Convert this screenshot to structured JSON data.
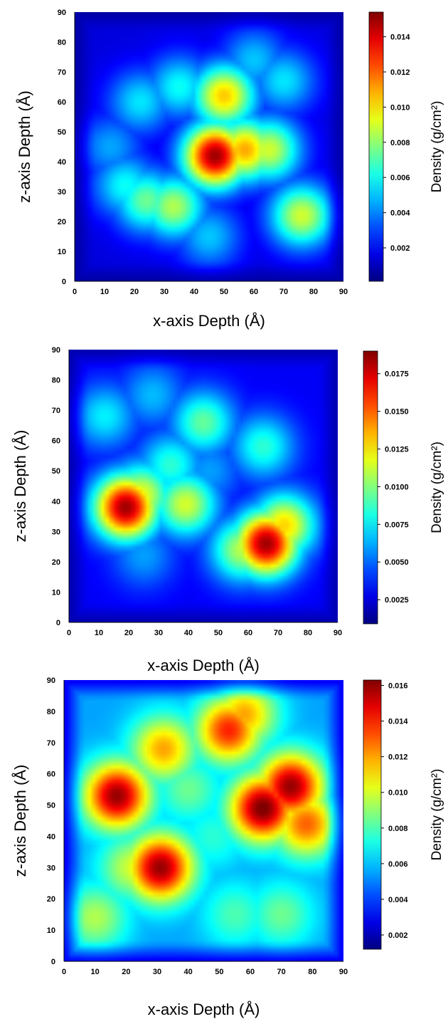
{
  "chart_data": [
    {
      "type": "heatmap",
      "xlabel": "x-axis Depth (Å)",
      "ylabel": "z-axis Depth (Å)",
      "xlim": [
        0,
        90
      ],
      "ylim": [
        0,
        90
      ],
      "x_ticks": [
        "0",
        "10",
        "20",
        "30",
        "40",
        "50",
        "60",
        "70",
        "80",
        "90"
      ],
      "y_ticks": [
        "0",
        "10",
        "20",
        "30",
        "40",
        "50",
        "60",
        "70",
        "80",
        "90"
      ],
      "colorbar": {
        "label": "Density (g/cm²)",
        "range": [
          0.0001,
          0.0154
        ],
        "ticks": [
          "0.002",
          "0.004",
          "0.006",
          "0.008",
          "0.010",
          "0.012",
          "0.014"
        ],
        "tick_values": [
          0.002,
          0.004,
          0.006,
          0.008,
          0.01,
          0.012,
          0.014
        ]
      },
      "colormap": "jet",
      "background_density": 0.0015,
      "hotspots": [
        {
          "x": 47,
          "z": 42,
          "density": 0.015
        },
        {
          "x": 57,
          "z": 44,
          "density": 0.011
        },
        {
          "x": 65,
          "z": 44,
          "density": 0.009
        },
        {
          "x": 50,
          "z": 62,
          "density": 0.0105
        },
        {
          "x": 24,
          "z": 27,
          "density": 0.0075
        },
        {
          "x": 33,
          "z": 25,
          "density": 0.0085
        },
        {
          "x": 17,
          "z": 32,
          "density": 0.006
        },
        {
          "x": 76,
          "z": 22,
          "density": 0.009
        },
        {
          "x": 35,
          "z": 65,
          "density": 0.006
        },
        {
          "x": 22,
          "z": 60,
          "density": 0.0055
        },
        {
          "x": 60,
          "z": 74,
          "density": 0.005
        },
        {
          "x": 70,
          "z": 67,
          "density": 0.0055
        },
        {
          "x": 45,
          "z": 15,
          "density": 0.005
        },
        {
          "x": 12,
          "z": 45,
          "density": 0.0045
        }
      ]
    },
    {
      "type": "heatmap",
      "xlabel": "x-axis Depth (Å)",
      "ylabel": "z-axis Depth (Å)",
      "xlim": [
        0,
        90
      ],
      "ylim": [
        0,
        90
      ],
      "x_ticks": [
        "0",
        "10",
        "20",
        "30",
        "40",
        "50",
        "60",
        "70",
        "80",
        "90"
      ],
      "y_ticks": [
        "0",
        "10",
        "20",
        "30",
        "40",
        "50",
        "60",
        "70",
        "80",
        "90"
      ],
      "colorbar": {
        "label": "Density (g/cm²)",
        "range": [
          0.0009,
          0.019
        ],
        "ticks": [
          "0.0025",
          "0.0050",
          "0.0075",
          "0.0100",
          "0.0125",
          "0.0150",
          "0.0175"
        ],
        "tick_values": [
          0.0025,
          0.005,
          0.0075,
          0.01,
          0.0125,
          0.015,
          0.0175
        ]
      },
      "colormap": "jet",
      "background_density": 0.003,
      "hotspots": [
        {
          "x": 19,
          "z": 38,
          "density": 0.0185
        },
        {
          "x": 24,
          "z": 42,
          "density": 0.012
        },
        {
          "x": 39,
          "z": 39,
          "density": 0.0115
        },
        {
          "x": 66,
          "z": 26,
          "density": 0.0185
        },
        {
          "x": 72,
          "z": 32,
          "density": 0.013
        },
        {
          "x": 58,
          "z": 24,
          "density": 0.011
        },
        {
          "x": 45,
          "z": 66,
          "density": 0.0095
        },
        {
          "x": 34,
          "z": 52,
          "density": 0.0085
        },
        {
          "x": 65,
          "z": 58,
          "density": 0.0085
        },
        {
          "x": 12,
          "z": 68,
          "density": 0.0075
        },
        {
          "x": 28,
          "z": 75,
          "density": 0.0065
        },
        {
          "x": 25,
          "z": 22,
          "density": 0.006
        },
        {
          "x": 47,
          "z": 50,
          "density": 0.006
        }
      ]
    },
    {
      "type": "heatmap",
      "xlabel": "x-axis Depth (Å)",
      "ylabel": "z-axis Depth (Å)",
      "xlim": [
        0,
        90
      ],
      "ylim": [
        0,
        90
      ],
      "x_ticks": [
        "0",
        "10",
        "20",
        "30",
        "40",
        "50",
        "60",
        "70",
        "80",
        "90"
      ],
      "y_ticks": [
        "0",
        "10",
        "20",
        "30",
        "40",
        "50",
        "60",
        "70",
        "80",
        "90"
      ],
      "colorbar": {
        "label": "Density (g/cm²)",
        "range": [
          0.0012,
          0.0163
        ],
        "ticks": [
          "0.002",
          "0.004",
          "0.006",
          "0.008",
          "0.010",
          "0.012",
          "0.014",
          "0.016"
        ],
        "tick_values": [
          0.002,
          0.004,
          0.006,
          0.008,
          0.01,
          0.012,
          0.014,
          0.016
        ]
      },
      "colormap": "jet",
      "background_density": 0.0055,
      "hotspots": [
        {
          "x": 17,
          "z": 53,
          "density": 0.016
        },
        {
          "x": 32,
          "z": 68,
          "density": 0.012
        },
        {
          "x": 53,
          "z": 74,
          "density": 0.014
        },
        {
          "x": 58,
          "z": 79,
          "density": 0.012
        },
        {
          "x": 64,
          "z": 49,
          "density": 0.0165
        },
        {
          "x": 73,
          "z": 56,
          "density": 0.016
        },
        {
          "x": 78,
          "z": 44,
          "density": 0.013
        },
        {
          "x": 31,
          "z": 30,
          "density": 0.016
        },
        {
          "x": 22,
          "z": 30,
          "density": 0.01
        },
        {
          "x": 10,
          "z": 14,
          "density": 0.0095
        },
        {
          "x": 40,
          "z": 55,
          "density": 0.0085
        },
        {
          "x": 55,
          "z": 15,
          "density": 0.008
        },
        {
          "x": 70,
          "z": 15,
          "density": 0.0085
        },
        {
          "x": 48,
          "z": 40,
          "density": 0.0075
        }
      ]
    }
  ]
}
